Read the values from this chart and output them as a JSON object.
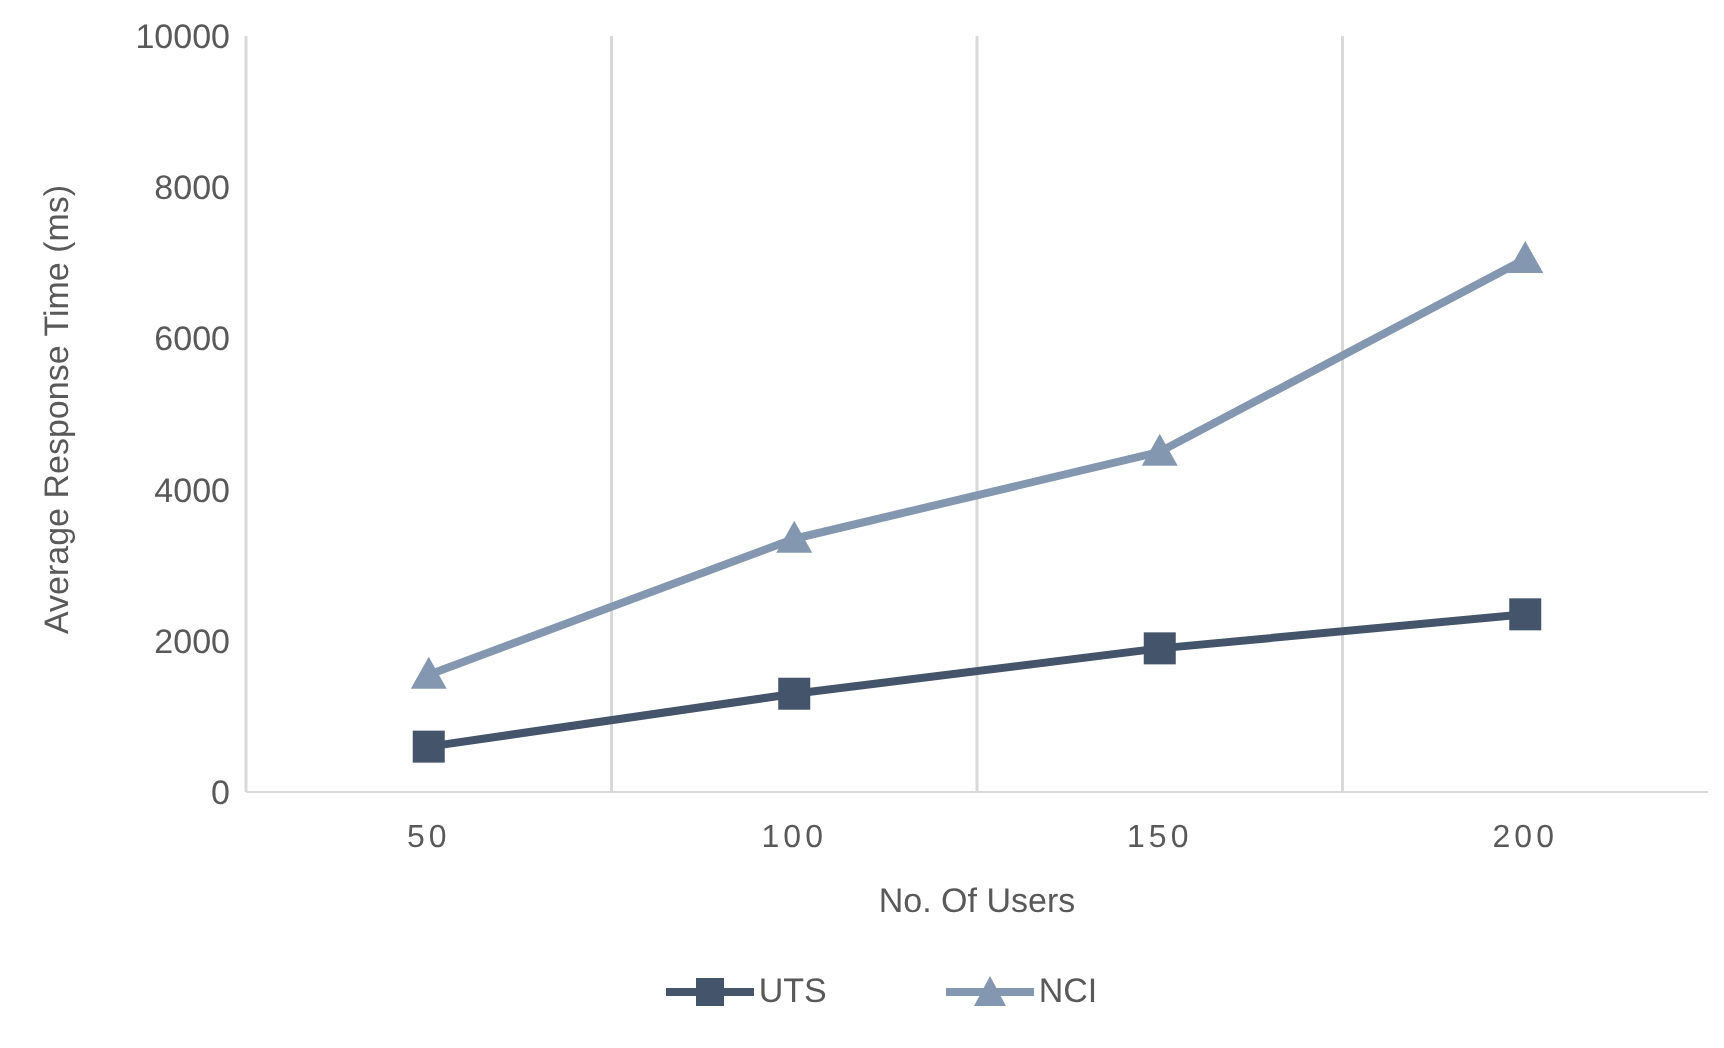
{
  "chart_data": {
    "type": "line",
    "xlabel": "No. Of Users",
    "ylabel": "Average Response Time (ms)",
    "categories": [
      "50",
      "100",
      "150",
      "200"
    ],
    "series": [
      {
        "name": "UTS",
        "color": "#44546a",
        "values": [
          600,
          1300,
          1900,
          2350
        ],
        "marker": "square"
      },
      {
        "name": "NCI",
        "color": "#8497b0",
        "values": [
          1550,
          3350,
          4500,
          7050
        ],
        "marker": "triangle"
      }
    ],
    "ylim": [
      0,
      10000
    ],
    "yticks": [
      0,
      2000,
      4000,
      6000,
      8000,
      10000
    ],
    "grid": "x",
    "legend": "bottom"
  }
}
